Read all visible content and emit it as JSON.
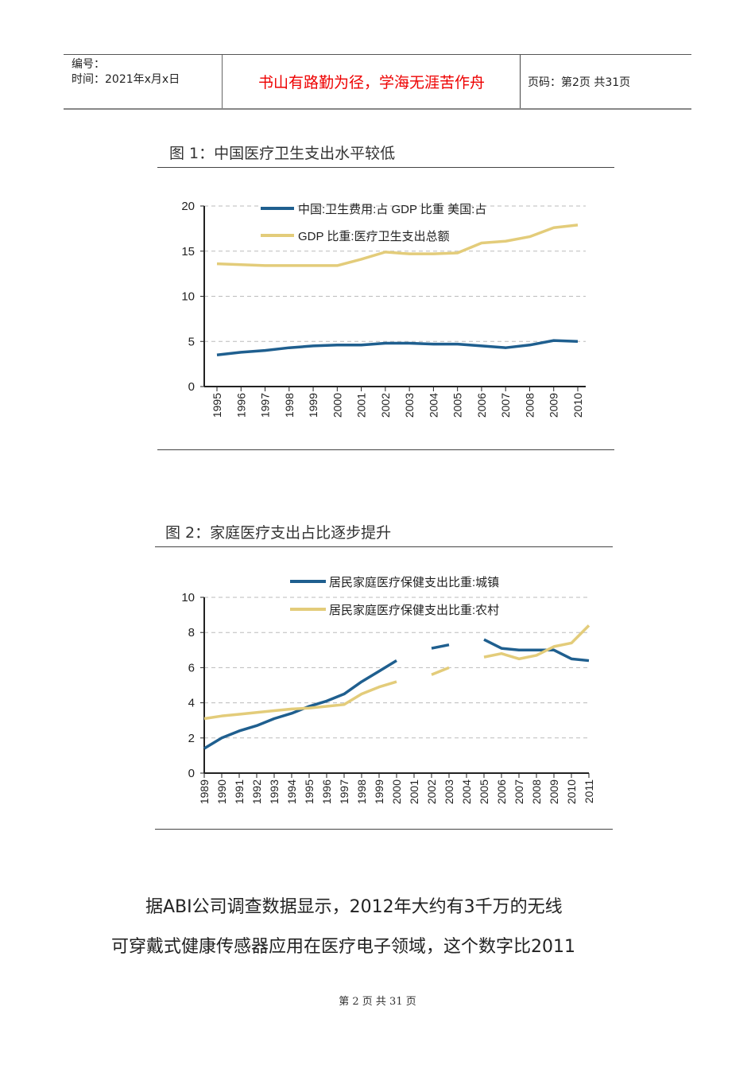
{
  "header": {
    "number_label": "编号：",
    "date_label": "时间：2021年x月x日",
    "motto": "书山有路勤为径，学海无涯苦作舟",
    "page_info": "页码：第2页  共31页"
  },
  "figure1": {
    "title": "图 1：中国医疗卫生支出水平较低",
    "chart_data": {
      "type": "line",
      "title": "",
      "xlabel": "",
      "ylabel": "",
      "ylim": [
        0,
        20
      ],
      "yticks": [
        0,
        5,
        10,
        15,
        20
      ],
      "grid": "horizontal dashed",
      "legend": "top",
      "x": [
        "1995",
        "1996",
        "1997",
        "1998",
        "1999",
        "2000",
        "2001",
        "2002",
        "2003",
        "2004",
        "2005",
        "2006",
        "2007",
        "2008",
        "2009",
        "2010"
      ],
      "legend_text": [
        "中国:卫生费用:占 GDP 比重 美国:占",
        "GDP 比重:医疗卫生支出总额"
      ],
      "series": [
        {
          "color": "#1f5f8f",
          "values": [
            3.5,
            3.8,
            4.0,
            4.3,
            4.5,
            4.6,
            4.6,
            4.8,
            4.8,
            4.7,
            4.7,
            4.5,
            4.3,
            4.6,
            5.1,
            5.0
          ]
        },
        {
          "color": "#e3cc7a",
          "values": [
            13.6,
            13.5,
            13.4,
            13.4,
            13.4,
            13.4,
            14.1,
            14.9,
            14.7,
            14.7,
            14.8,
            15.9,
            16.1,
            16.6,
            17.6,
            17.9
          ]
        }
      ]
    }
  },
  "figure2": {
    "title": "图 2：家庭医疗支出占比逐步提升",
    "chart_data": {
      "type": "line",
      "title": "",
      "xlabel": "",
      "ylabel": "",
      "ylim": [
        0,
        10
      ],
      "yticks": [
        0,
        2,
        4,
        6,
        8,
        10
      ],
      "grid": "horizontal dashed",
      "legend": "top",
      "x": [
        "1989",
        "1990",
        "1991",
        "1992",
        "1993",
        "1994",
        "1995",
        "1996",
        "1997",
        "1998",
        "1999",
        "2000",
        "2001",
        "2002",
        "2003",
        "2004",
        "2005",
        "2006",
        "2007",
        "2008",
        "2009",
        "2010",
        "2011"
      ],
      "series": [
        {
          "name": "居民家庭医疗保健支出比重:城镇",
          "color": "#1f5f8f",
          "values": [
            1.4,
            2.0,
            2.4,
            2.7,
            3.1,
            3.4,
            3.8,
            4.1,
            4.5,
            5.2,
            5.8,
            6.4,
            null,
            7.1,
            7.3,
            null,
            7.6,
            7.1,
            7.0,
            7.0,
            7.0,
            6.5,
            6.4
          ]
        },
        {
          "name": "居民家庭医疗保健支出比重:农村",
          "color": "#e3cc7a",
          "values": [
            3.1,
            3.25,
            3.35,
            3.45,
            3.55,
            3.65,
            3.7,
            3.8,
            3.9,
            4.5,
            4.9,
            5.2,
            null,
            5.6,
            6.0,
            null,
            6.6,
            6.8,
            6.5,
            6.7,
            7.2,
            7.4,
            8.4
          ]
        }
      ]
    }
  },
  "body": {
    "line1": "据ABI公司调查数据显示，2012年大约有3千万的无线",
    "line2": "可穿戴式健康传感器应用在医疗电子领域，这个数字比2011"
  },
  "footer": {
    "text": "第 2 页 共 31 页"
  }
}
